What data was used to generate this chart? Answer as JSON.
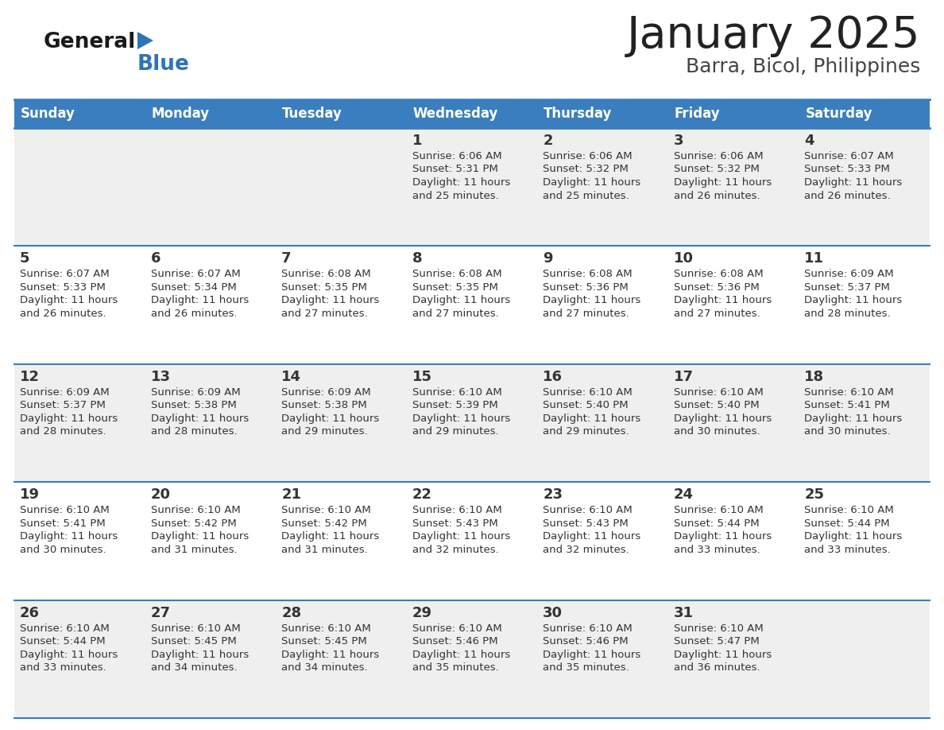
{
  "title": "January 2025",
  "subtitle": "Barra, Bicol, Philippines",
  "days_of_week": [
    "Sunday",
    "Monday",
    "Tuesday",
    "Wednesday",
    "Thursday",
    "Friday",
    "Saturday"
  ],
  "header_bg": "#3A7EBF",
  "header_text": "#FFFFFF",
  "cell_bg_odd": "#EFEFEF",
  "cell_bg_even": "#FFFFFF",
  "separator_color": "#3A7EBF",
  "text_color": "#333333",
  "title_color": "#222222",
  "subtitle_color": "#444444",
  "calendar": [
    [
      null,
      null,
      null,
      {
        "day": 1,
        "sunrise": "6:06 AM",
        "sunset": "5:31 PM",
        "daylight": "11 hours",
        "daylight2": "and 25 minutes."
      },
      {
        "day": 2,
        "sunrise": "6:06 AM",
        "sunset": "5:32 PM",
        "daylight": "11 hours",
        "daylight2": "and 25 minutes."
      },
      {
        "day": 3,
        "sunrise": "6:06 AM",
        "sunset": "5:32 PM",
        "daylight": "11 hours",
        "daylight2": "and 26 minutes."
      },
      {
        "day": 4,
        "sunrise": "6:07 AM",
        "sunset": "5:33 PM",
        "daylight": "11 hours",
        "daylight2": "and 26 minutes."
      }
    ],
    [
      {
        "day": 5,
        "sunrise": "6:07 AM",
        "sunset": "5:33 PM",
        "daylight": "11 hours",
        "daylight2": "and 26 minutes."
      },
      {
        "day": 6,
        "sunrise": "6:07 AM",
        "sunset": "5:34 PM",
        "daylight": "11 hours",
        "daylight2": "and 26 minutes."
      },
      {
        "day": 7,
        "sunrise": "6:08 AM",
        "sunset": "5:35 PM",
        "daylight": "11 hours",
        "daylight2": "and 27 minutes."
      },
      {
        "day": 8,
        "sunrise": "6:08 AM",
        "sunset": "5:35 PM",
        "daylight": "11 hours",
        "daylight2": "and 27 minutes."
      },
      {
        "day": 9,
        "sunrise": "6:08 AM",
        "sunset": "5:36 PM",
        "daylight": "11 hours",
        "daylight2": "and 27 minutes."
      },
      {
        "day": 10,
        "sunrise": "6:08 AM",
        "sunset": "5:36 PM",
        "daylight": "11 hours",
        "daylight2": "and 27 minutes."
      },
      {
        "day": 11,
        "sunrise": "6:09 AM",
        "sunset": "5:37 PM",
        "daylight": "11 hours",
        "daylight2": "and 28 minutes."
      }
    ],
    [
      {
        "day": 12,
        "sunrise": "6:09 AM",
        "sunset": "5:37 PM",
        "daylight": "11 hours",
        "daylight2": "and 28 minutes."
      },
      {
        "day": 13,
        "sunrise": "6:09 AM",
        "sunset": "5:38 PM",
        "daylight": "11 hours",
        "daylight2": "and 28 minutes."
      },
      {
        "day": 14,
        "sunrise": "6:09 AM",
        "sunset": "5:38 PM",
        "daylight": "11 hours",
        "daylight2": "and 29 minutes."
      },
      {
        "day": 15,
        "sunrise": "6:10 AM",
        "sunset": "5:39 PM",
        "daylight": "11 hours",
        "daylight2": "and 29 minutes."
      },
      {
        "day": 16,
        "sunrise": "6:10 AM",
        "sunset": "5:40 PM",
        "daylight": "11 hours",
        "daylight2": "and 29 minutes."
      },
      {
        "day": 17,
        "sunrise": "6:10 AM",
        "sunset": "5:40 PM",
        "daylight": "11 hours",
        "daylight2": "and 30 minutes."
      },
      {
        "day": 18,
        "sunrise": "6:10 AM",
        "sunset": "5:41 PM",
        "daylight": "11 hours",
        "daylight2": "and 30 minutes."
      }
    ],
    [
      {
        "day": 19,
        "sunrise": "6:10 AM",
        "sunset": "5:41 PM",
        "daylight": "11 hours",
        "daylight2": "and 30 minutes."
      },
      {
        "day": 20,
        "sunrise": "6:10 AM",
        "sunset": "5:42 PM",
        "daylight": "11 hours",
        "daylight2": "and 31 minutes."
      },
      {
        "day": 21,
        "sunrise": "6:10 AM",
        "sunset": "5:42 PM",
        "daylight": "11 hours",
        "daylight2": "and 31 minutes."
      },
      {
        "day": 22,
        "sunrise": "6:10 AM",
        "sunset": "5:43 PM",
        "daylight": "11 hours",
        "daylight2": "and 32 minutes."
      },
      {
        "day": 23,
        "sunrise": "6:10 AM",
        "sunset": "5:43 PM",
        "daylight": "11 hours",
        "daylight2": "and 32 minutes."
      },
      {
        "day": 24,
        "sunrise": "6:10 AM",
        "sunset": "5:44 PM",
        "daylight": "11 hours",
        "daylight2": "and 33 minutes."
      },
      {
        "day": 25,
        "sunrise": "6:10 AM",
        "sunset": "5:44 PM",
        "daylight": "11 hours",
        "daylight2": "and 33 minutes."
      }
    ],
    [
      {
        "day": 26,
        "sunrise": "6:10 AM",
        "sunset": "5:44 PM",
        "daylight": "11 hours",
        "daylight2": "and 33 minutes."
      },
      {
        "day": 27,
        "sunrise": "6:10 AM",
        "sunset": "5:45 PM",
        "daylight": "11 hours",
        "daylight2": "and 34 minutes."
      },
      {
        "day": 28,
        "sunrise": "6:10 AM",
        "sunset": "5:45 PM",
        "daylight": "11 hours",
        "daylight2": "and 34 minutes."
      },
      {
        "day": 29,
        "sunrise": "6:10 AM",
        "sunset": "5:46 PM",
        "daylight": "11 hours",
        "daylight2": "and 35 minutes."
      },
      {
        "day": 30,
        "sunrise": "6:10 AM",
        "sunset": "5:46 PM",
        "daylight": "11 hours",
        "daylight2": "and 35 minutes."
      },
      {
        "day": 31,
        "sunrise": "6:10 AM",
        "sunset": "5:47 PM",
        "daylight": "11 hours",
        "daylight2": "and 36 minutes."
      },
      null
    ]
  ],
  "logo_general_color": "#1a1a1a",
  "logo_blue_color": "#2E75B6",
  "logo_triangle_color": "#2E75B6",
  "fig_width": 11.88,
  "fig_height": 9.18,
  "dpi": 100
}
